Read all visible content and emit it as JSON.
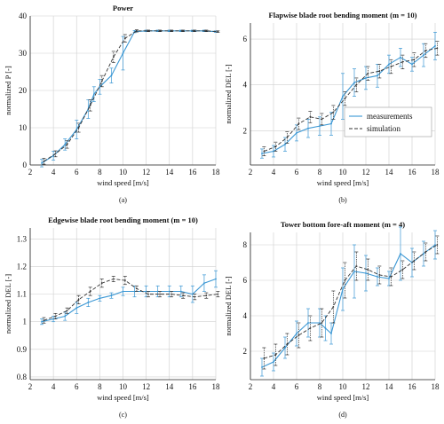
{
  "colors": {
    "measurements": "#3a97d4",
    "simulation": "#333333",
    "grid": "#cfcfcf"
  },
  "chart_data": [
    {
      "type": "line",
      "title": "Power",
      "caption": "(a)",
      "xlabel": "wind speed [m/s]",
      "ylabel": "normalized P [-]",
      "xlim": [
        2,
        18
      ],
      "ylim": [
        0,
        40
      ],
      "grid": true,
      "xticks": [
        2,
        4,
        6,
        8,
        10,
        12,
        14,
        16,
        18
      ],
      "yticks": [
        0,
        10,
        20,
        30,
        40
      ],
      "series": [
        {
          "name": "measurements",
          "style": "solid",
          "x": [
            3,
            4,
            5,
            6,
            7,
            7.5,
            8,
            9,
            10,
            11,
            12,
            13,
            14,
            15,
            16,
            17,
            18
          ],
          "y": [
            0.5,
            2.5,
            5.5,
            9.5,
            15,
            19,
            21,
            24,
            30,
            35.8,
            36,
            36,
            36,
            36,
            36,
            36,
            35.8
          ],
          "err": [
            1,
            1.2,
            1.5,
            2.5,
            2.5,
            2,
            2,
            2,
            4.5,
            0.3,
            0.2,
            0.2,
            0.2,
            0.2,
            0.2,
            0.2,
            0.2
          ]
        },
        {
          "name": "simulation",
          "style": "dashed",
          "x": [
            3,
            4,
            5,
            6,
            7,
            8,
            9,
            10,
            11,
            12,
            13,
            14,
            15,
            16,
            17,
            18
          ],
          "y": [
            1,
            3,
            5.5,
            10,
            16,
            22.5,
            29,
            34,
            36,
            36,
            36,
            36,
            36,
            36,
            36,
            35.8
          ],
          "err": [
            0.8,
            0.8,
            1,
            1.2,
            1.5,
            1.5,
            1.5,
            1,
            0.3,
            0.2,
            0.2,
            0.2,
            0.2,
            0.2,
            0.2,
            0.2
          ]
        }
      ]
    },
    {
      "type": "line",
      "title": "Flapwise blade root bending moment (m = 10)",
      "caption": "(b)",
      "xlabel": "wind speed [m/s]",
      "ylabel": "normalized DEL [-]",
      "xlim": [
        2,
        18
      ],
      "ylim": [
        0.5,
        6.7
      ],
      "grid": true,
      "xticks": [
        2,
        4,
        6,
        8,
        10,
        12,
        14,
        16,
        18
      ],
      "yticks": [
        2,
        4,
        6
      ],
      "legend": {
        "position": "right",
        "entries": [
          "measurements",
          "simulation"
        ]
      },
      "series": [
        {
          "name": "measurements",
          "style": "solid",
          "x": [
            3,
            4,
            5,
            6,
            7,
            8,
            9,
            10,
            11,
            12,
            13,
            14,
            15,
            16,
            17,
            18
          ],
          "y": [
            1,
            1.1,
            1.4,
            1.9,
            2.1,
            2.2,
            2.3,
            3.5,
            4.1,
            4.3,
            4.4,
            4.9,
            5.2,
            4.9,
            5.3,
            5.7
          ],
          "err": [
            0.2,
            0.25,
            0.3,
            0.35,
            0.4,
            0.4,
            0.5,
            1,
            0.6,
            0.5,
            0.5,
            0.4,
            0.4,
            0.3,
            0.5,
            0.6
          ]
        },
        {
          "name": "simulation",
          "style": "dashed",
          "x": [
            3,
            4,
            5,
            6,
            7,
            8,
            9,
            10,
            11,
            12,
            13,
            14,
            15,
            16,
            17,
            18
          ],
          "y": [
            1.1,
            1.3,
            1.7,
            2.3,
            2.6,
            2.5,
            2.8,
            3.4,
            4,
            4.5,
            4.6,
            4.8,
            5,
            5.1,
            5.5,
            5.6
          ],
          "err": [
            0.2,
            0.2,
            0.25,
            0.25,
            0.25,
            0.25,
            0.3,
            0.3,
            0.3,
            0.3,
            0.3,
            0.3,
            0.3,
            0.3,
            0.3,
            0.3
          ]
        }
      ]
    },
    {
      "type": "line",
      "title": "Edgewise blade root bending moment (m = 10)",
      "caption": "(c)",
      "xlabel": "wind speed [m/s]",
      "ylabel": "normalized DEL [-]",
      "xlim": [
        2,
        18
      ],
      "ylim": [
        0.79,
        1.34
      ],
      "grid": true,
      "xticks": [
        2,
        4,
        6,
        8,
        10,
        12,
        14,
        16,
        18
      ],
      "yticks": [
        0.8,
        0.9,
        1,
        1.1,
        1.2,
        1.3
      ],
      "series": [
        {
          "name": "measurements",
          "style": "solid",
          "x": [
            3,
            4,
            5,
            6,
            7,
            8,
            9,
            10,
            11,
            12,
            13,
            14,
            15,
            16,
            17,
            18
          ],
          "y": [
            1,
            1.01,
            1.02,
            1.05,
            1.07,
            1.085,
            1.095,
            1.11,
            1.11,
            1.11,
            1.11,
            1.11,
            1.11,
            1.1,
            1.14,
            1.155
          ],
          "err": [
            0.01,
            0.01,
            0.015,
            0.02,
            0.015,
            0.01,
            0.01,
            0.015,
            0.02,
            0.02,
            0.02,
            0.02,
            0.02,
            0.03,
            0.03,
            0.03
          ]
        },
        {
          "name": "simulation",
          "style": "dashed",
          "x": [
            3,
            4,
            5,
            6,
            7,
            8,
            9,
            10,
            11,
            12,
            13,
            14,
            15,
            16,
            17,
            18
          ],
          "y": [
            1.005,
            1.02,
            1.04,
            1.08,
            1.11,
            1.14,
            1.155,
            1.15,
            1.12,
            1.1,
            1.1,
            1.1,
            1.095,
            1.09,
            1.095,
            1.1
          ],
          "err": [
            0.01,
            0.01,
            0.01,
            0.015,
            0.015,
            0.015,
            0.01,
            0.015,
            0.01,
            0.01,
            0.01,
            0.01,
            0.01,
            0.01,
            0.01,
            0.01
          ]
        }
      ]
    },
    {
      "type": "line",
      "title": "Tower bottom fore-aft moment (m = 4)",
      "caption": "(d)",
      "xlabel": "wind speed [m/s]",
      "ylabel": "normalized DEL [-]",
      "xlim": [
        2,
        18
      ],
      "ylim": [
        0.4,
        8.7
      ],
      "grid": true,
      "xticks": [
        2,
        4,
        6,
        8,
        10,
        12,
        14,
        16,
        18
      ],
      "yticks": [
        2,
        4,
        6,
        8
      ],
      "series": [
        {
          "name": "measurements",
          "style": "solid",
          "x": [
            3,
            4,
            5,
            6,
            7,
            8,
            8.5,
            9,
            10,
            11,
            12,
            13,
            14,
            15,
            16,
            17,
            18
          ],
          "y": [
            1.1,
            1.4,
            2.2,
            3,
            3.6,
            3.6,
            3.3,
            3,
            5.5,
            6.5,
            6.4,
            6.2,
            6.1,
            7.5,
            7,
            7.5,
            8
          ],
          "err": [
            0.5,
            0.5,
            0.6,
            0.7,
            0.8,
            0.8,
            0.7,
            0.6,
            1.2,
            1.5,
            1,
            0.5,
            0.4,
            1.5,
            0.8,
            0.7,
            0.8
          ]
        },
        {
          "name": "simulation",
          "style": "dashed",
          "x": [
            3,
            4,
            5,
            6,
            7,
            8,
            9,
            10,
            11,
            12,
            13,
            14,
            15,
            16,
            17,
            18
          ],
          "y": [
            1.6,
            1.8,
            2.4,
            2.9,
            3.3,
            3.6,
            4.5,
            6,
            6.8,
            6.6,
            6.3,
            6.2,
            6.6,
            7.1,
            7.6,
            8
          ],
          "err": [
            0.6,
            0.6,
            0.6,
            0.7,
            0.7,
            0.8,
            0.9,
            1,
            0.8,
            0.6,
            0.5,
            0.5,
            0.5,
            0.5,
            0.5,
            0.5
          ]
        }
      ]
    }
  ]
}
